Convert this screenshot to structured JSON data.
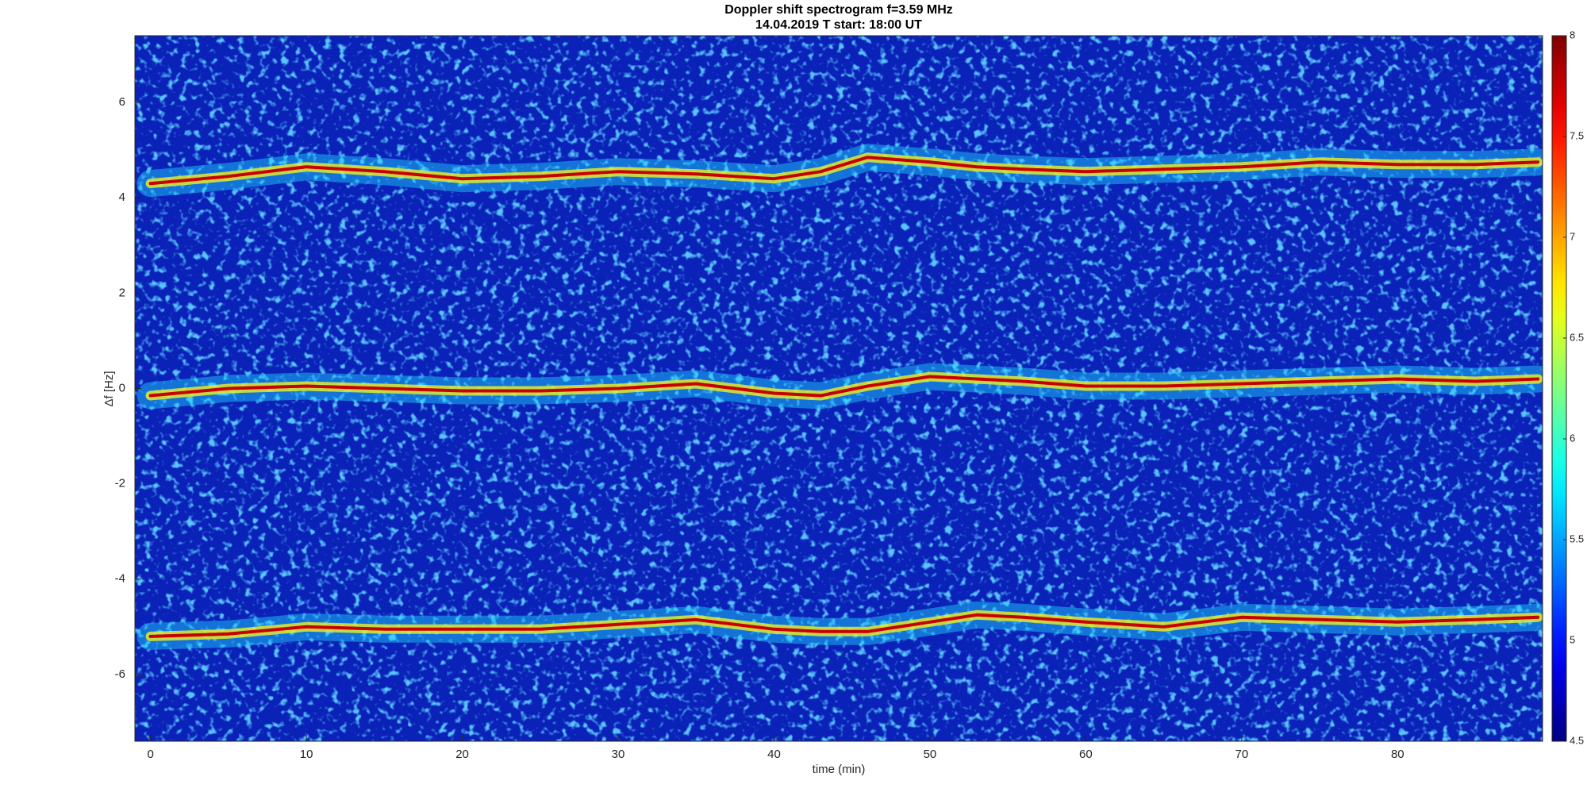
{
  "chart_data": {
    "type": "spectrogram",
    "title": "Doppler shift spectrogram f=3.59 MHz",
    "subtitle": "14.04.2019   T start: 18:00 UT",
    "xlabel": "time (min)",
    "ylabel": "Δf [Hz]",
    "xlim": [
      -1,
      89.3
    ],
    "ylim": [
      -7.4,
      7.4
    ],
    "xticks": [
      0,
      10,
      20,
      30,
      40,
      50,
      60,
      70,
      80
    ],
    "yticks": [
      -6,
      -4,
      -2,
      0,
      2,
      4,
      6
    ],
    "colormap": "jet",
    "clim": [
      4.5,
      8
    ],
    "cticks": [
      4.5,
      5,
      5.5,
      6,
      6.5,
      7,
      7.5,
      8
    ],
    "background_color": "#0a22b8",
    "x": [
      0,
      5,
      10,
      15,
      20,
      25,
      30,
      35,
      40,
      43,
      46,
      50,
      53,
      56,
      60,
      65,
      70,
      75,
      80,
      85,
      89
    ],
    "series": [
      {
        "color": "#c80000",
        "values": [
          4.3,
          4.45,
          4.65,
          4.55,
          4.4,
          4.45,
          4.55,
          4.5,
          4.4,
          4.55,
          4.85,
          4.75,
          4.65,
          4.6,
          4.55,
          4.6,
          4.65,
          4.75,
          4.7,
          4.7,
          4.75
        ]
      },
      {
        "color": "#c80000",
        "values": [
          -0.15,
          0.0,
          0.05,
          0.0,
          -0.05,
          -0.05,
          0.0,
          0.1,
          -0.1,
          -0.15,
          0.05,
          0.25,
          0.2,
          0.15,
          0.05,
          0.05,
          0.1,
          0.15,
          0.2,
          0.15,
          0.2
        ]
      },
      {
        "color": "#c80000",
        "values": [
          -5.2,
          -5.15,
          -5.0,
          -5.05,
          -5.05,
          -5.05,
          -4.95,
          -4.85,
          -5.05,
          -5.1,
          -5.1,
          -4.9,
          -4.75,
          -4.8,
          -4.9,
          -5.0,
          -4.8,
          -4.85,
          -4.9,
          -4.85,
          -4.8
        ]
      }
    ]
  }
}
